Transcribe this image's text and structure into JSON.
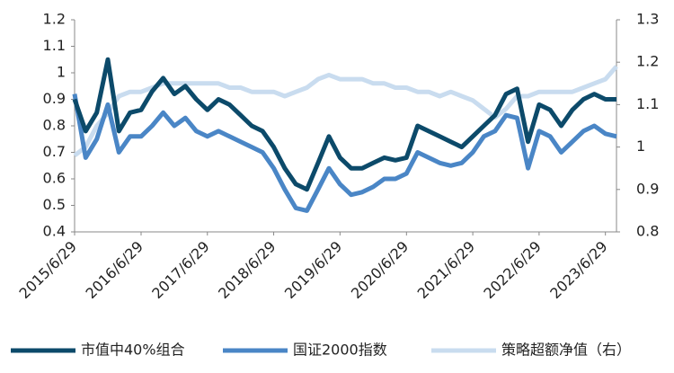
{
  "chart_data": {
    "type": "line",
    "x": [
      "2015/6/29",
      "2015/8/29",
      "2015/10/29",
      "2015/12/29",
      "2016/2/28",
      "2016/4/29",
      "2016/6/29",
      "2016/8/29",
      "2016/10/29",
      "2016/12/29",
      "2017/2/28",
      "2017/4/29",
      "2017/6/29",
      "2017/8/29",
      "2017/10/29",
      "2017/12/29",
      "2018/2/28",
      "2018/4/29",
      "2018/6/29",
      "2018/8/29",
      "2018/10/29",
      "2018/12/29",
      "2019/2/28",
      "2019/4/29",
      "2019/6/29",
      "2019/8/29",
      "2019/10/29",
      "2019/12/29",
      "2020/2/28",
      "2020/4/29",
      "2020/6/29",
      "2020/8/29",
      "2020/10/29",
      "2020/12/29",
      "2021/2/28",
      "2021/4/29",
      "2021/6/29",
      "2021/8/29",
      "2021/10/29",
      "2021/12/29",
      "2022/2/28",
      "2022/4/29",
      "2022/6/29",
      "2022/8/29",
      "2022/10/29",
      "2022/12/29",
      "2023/2/28",
      "2023/4/29",
      "2023/6/29",
      "2023/8/29"
    ],
    "series": [
      {
        "name": "市值中40%组合",
        "color": "#0c4a6a",
        "values": [
          0.9,
          0.78,
          0.85,
          1.05,
          0.78,
          0.85,
          0.86,
          0.93,
          0.98,
          0.92,
          0.95,
          0.9,
          0.86,
          0.9,
          0.88,
          0.84,
          0.8,
          0.78,
          0.72,
          0.64,
          0.58,
          0.56,
          0.66,
          0.76,
          0.68,
          0.64,
          0.64,
          0.66,
          0.68,
          0.67,
          0.68,
          0.8,
          0.78,
          0.76,
          0.74,
          0.72,
          0.76,
          0.8,
          0.84,
          0.92,
          0.94,
          0.74,
          0.88,
          0.86,
          0.8,
          0.86,
          0.9,
          0.92,
          0.9,
          0.9
        ]
      },
      {
        "name": "国证2000指数",
        "color": "#4a86c6",
        "values": [
          0.92,
          0.68,
          0.75,
          0.88,
          0.7,
          0.76,
          0.76,
          0.8,
          0.85,
          0.8,
          0.83,
          0.78,
          0.76,
          0.78,
          0.76,
          0.74,
          0.72,
          0.7,
          0.64,
          0.56,
          0.49,
          0.48,
          0.56,
          0.64,
          0.58,
          0.54,
          0.55,
          0.57,
          0.6,
          0.6,
          0.62,
          0.7,
          0.68,
          0.66,
          0.65,
          0.66,
          0.7,
          0.76,
          0.78,
          0.84,
          0.83,
          0.64,
          0.78,
          0.76,
          0.7,
          0.74,
          0.78,
          0.8,
          0.77,
          0.76
        ]
      },
      {
        "name": "策略超额净值（右）",
        "color": "#c9dcef",
        "axis": "y2",
        "values": [
          0.98,
          1.0,
          1.05,
          1.08,
          1.12,
          1.13,
          1.13,
          1.14,
          1.15,
          1.15,
          1.15,
          1.15,
          1.15,
          1.15,
          1.14,
          1.14,
          1.13,
          1.13,
          1.13,
          1.12,
          1.13,
          1.14,
          1.16,
          1.17,
          1.16,
          1.16,
          1.16,
          1.15,
          1.15,
          1.14,
          1.14,
          1.13,
          1.13,
          1.12,
          1.13,
          1.12,
          1.11,
          1.09,
          1.07,
          1.09,
          1.12,
          1.12,
          1.13,
          1.13,
          1.13,
          1.13,
          1.14,
          1.15,
          1.16,
          1.19
        ]
      }
    ],
    "ylim": [
      0.4,
      1.2
    ],
    "yticks": [
      0.4,
      0.5,
      0.6,
      0.7,
      0.8,
      0.9,
      1,
      1.1,
      1.2
    ],
    "y2lim": [
      0.8,
      1.3
    ],
    "y2ticks": [
      0.8,
      0.9,
      1,
      1.1,
      1.2,
      1.3
    ],
    "xticks": [
      "2015/6/29",
      "2016/6/29",
      "2017/6/29",
      "2018/6/29",
      "2019/6/29",
      "2020/6/29",
      "2021/6/29",
      "2022/6/29",
      "2023/6/29"
    ],
    "legend": "bottom"
  }
}
